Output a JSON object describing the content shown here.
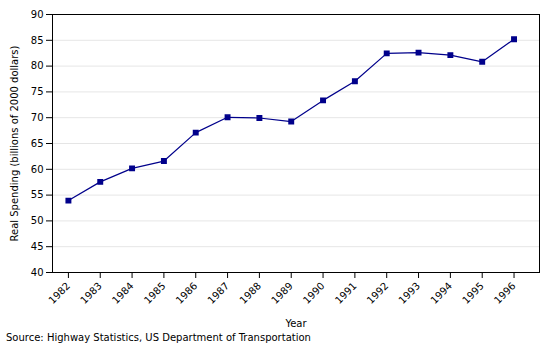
{
  "chart_data": {
    "type": "line",
    "x": [
      1982,
      1983,
      1984,
      1985,
      1986,
      1987,
      1988,
      1989,
      1990,
      1991,
      1992,
      1993,
      1994,
      1995,
      1996
    ],
    "values": [
      53.93563897,
      57.5650107,
      60.18378585,
      61.59624016,
      67.10581327,
      70.07597397,
      69.94196489,
      69.25092363,
      73.35607659,
      77.0723469,
      82.46640341,
      82.60537953,
      82.12711579,
      80.83048675,
      85.21740054
    ],
    "color": "#00008B",
    "marker": "square",
    "xlabel": "Year",
    "ylabel": "Real Spending (billions of 2000 dollars)",
    "xlim": [
      1981.5,
      1996.8
    ],
    "xticks": [
      1982,
      1983,
      1984,
      1985,
      1986,
      1987,
      1988,
      1989,
      1990,
      1991,
      1992,
      1993,
      1994,
      1995,
      1996
    ],
    "ylim": [
      40,
      90
    ],
    "yticks": [
      40,
      45,
      50,
      55,
      60,
      65,
      70,
      75,
      80,
      85,
      90
    ],
    "grid": true,
    "source": "Source: Highway Statistics, US Department of Transportation"
  }
}
